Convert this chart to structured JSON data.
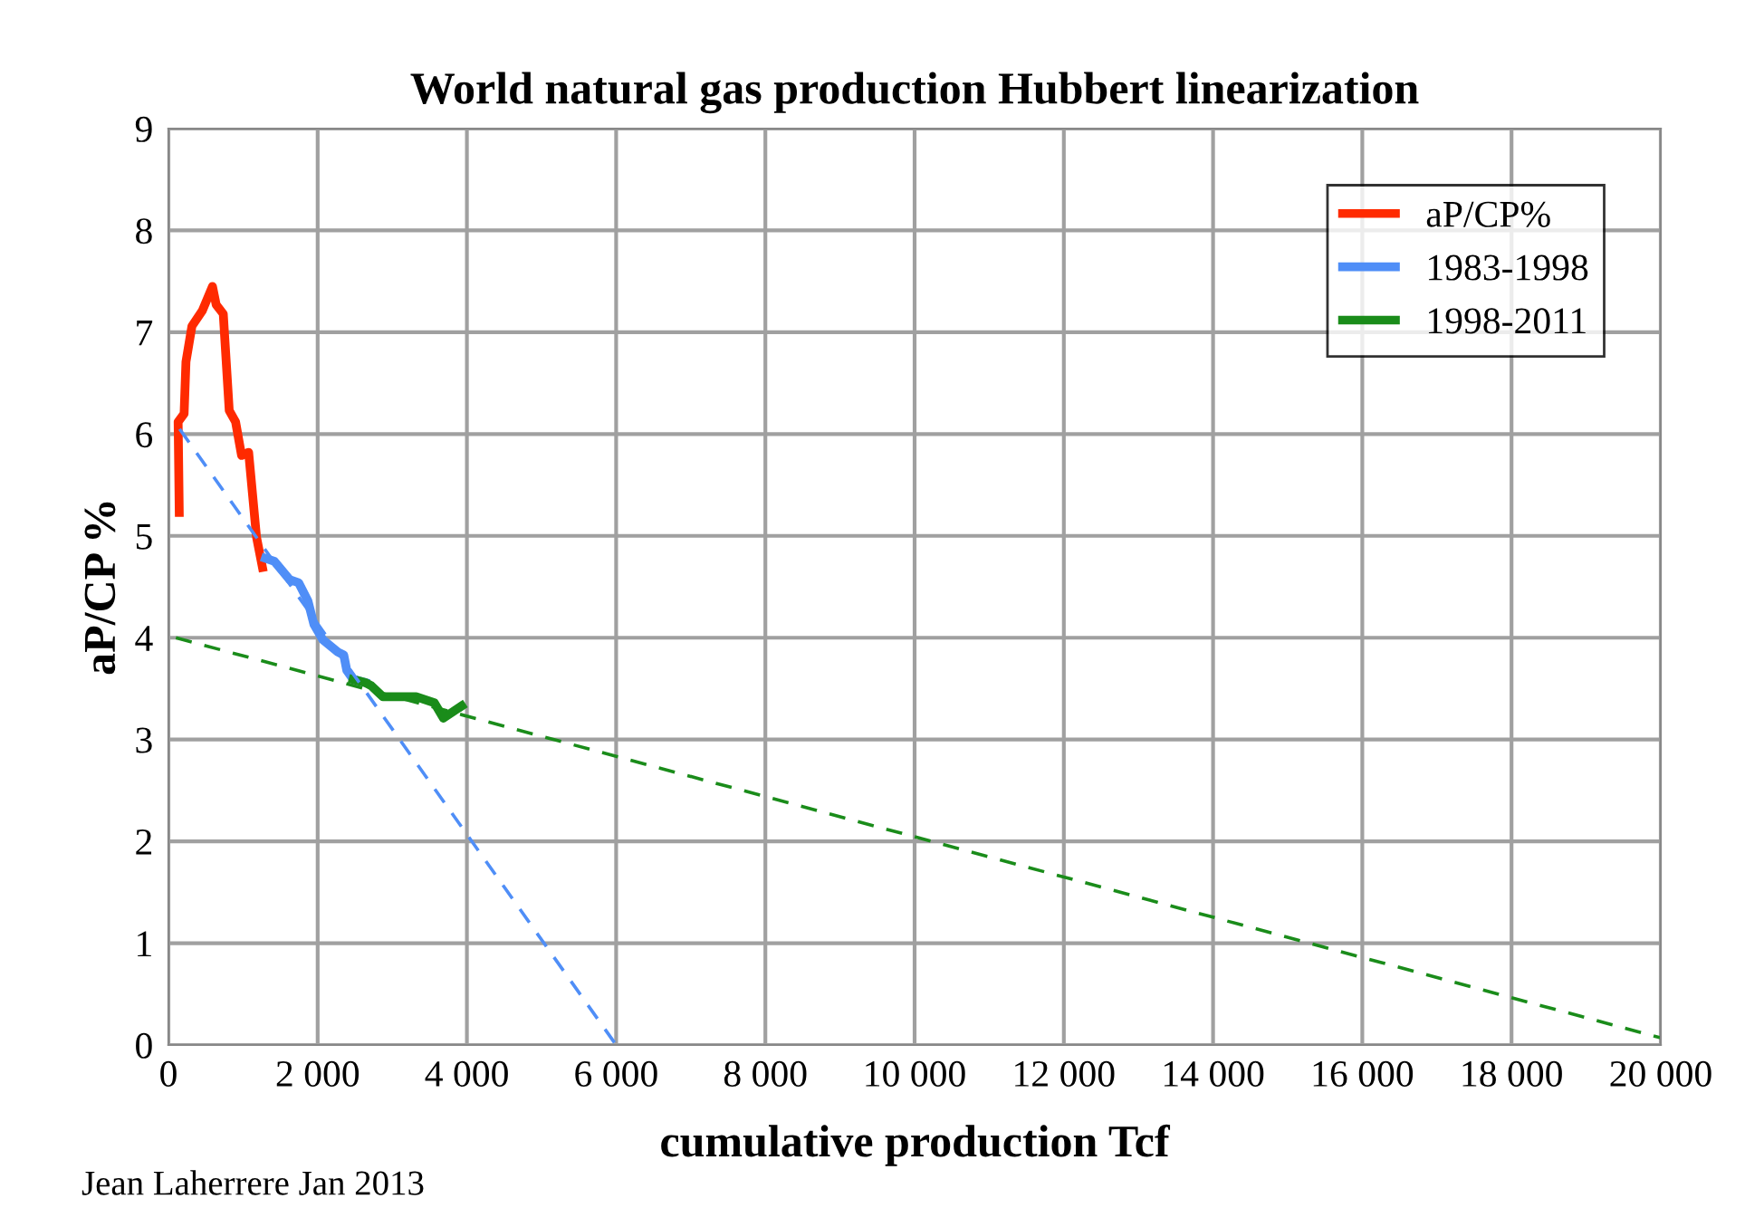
{
  "chart_data": {
    "type": "line",
    "title": "World natural gas production Hubbert linearization",
    "xlabel": "cumulative production Tcf",
    "ylabel": "aP/CP %",
    "xlim": [
      0,
      20000
    ],
    "ylim": [
      0,
      9
    ],
    "xticks": [
      0,
      {
        "value": 2000,
        "label": "2 000"
      },
      {
        "value": 4000,
        "label": "4 000"
      },
      {
        "value": 6000,
        "label": "6 000"
      },
      {
        "value": 8000,
        "label": "8 000"
      },
      {
        "value": 10000,
        "label": "10 000"
      },
      {
        "value": 12000,
        "label": "12 000"
      },
      {
        "value": 14000,
        "label": "14 000"
      },
      {
        "value": 16000,
        "label": "16 000"
      },
      {
        "value": 18000,
        "label": "18 000"
      },
      {
        "value": 20000,
        "label": "20 000"
      }
    ],
    "yticks": [
      0,
      1,
      2,
      3,
      4,
      5,
      6,
      7,
      8,
      9
    ],
    "grid": true,
    "legend": "top right",
    "marker": "none",
    "series": [
      {
        "name": "aP/CP%",
        "color": "#ff2a00",
        "line_style": "solid",
        "x": [
          145,
          130,
          210,
          235,
          315,
          453,
          590,
          640,
          735,
          815,
          900,
          980,
          1075,
          1180,
          1260
        ],
        "values": [
          5.23,
          6.12,
          6.2,
          6.71,
          7.06,
          7.21,
          7.45,
          7.27,
          7.18,
          6.23,
          6.12,
          5.79,
          5.82,
          4.99,
          4.69
        ]
      },
      {
        "name": "1983-1998",
        "color": "#4f8ef7",
        "line_style": "solid",
        "x": [
          1300,
          1420,
          1625,
          1745,
          1870,
          1950,
          2070,
          2270,
          2350,
          2390,
          2475,
          2635
        ],
        "values": [
          4.78,
          4.75,
          4.57,
          4.54,
          4.36,
          4.13,
          3.98,
          3.86,
          3.83,
          3.68,
          3.59,
          3.56
        ]
      },
      {
        "name": "1998-2011",
        "color": "#1a8c1a",
        "line_style": "solid",
        "x": [
          2475,
          2635,
          2715,
          2875,
          3320,
          3565,
          3685,
          3930
        ],
        "values": [
          3.59,
          3.56,
          3.53,
          3.42,
          3.42,
          3.36,
          3.21,
          3.33
        ]
      },
      {
        "color": "#4f8ef7",
        "line_style": "dashed",
        "x": [
          150,
          6000
        ],
        "values": [
          6.05,
          0
        ]
      },
      {
        "color": "#1a8c1a",
        "line_style": "dashed",
        "x": [
          100,
          20000
        ],
        "values": [
          4.0,
          0.07
        ]
      }
    ],
    "annotations": [
      "Jean Laherrere Jan 2013"
    ]
  }
}
